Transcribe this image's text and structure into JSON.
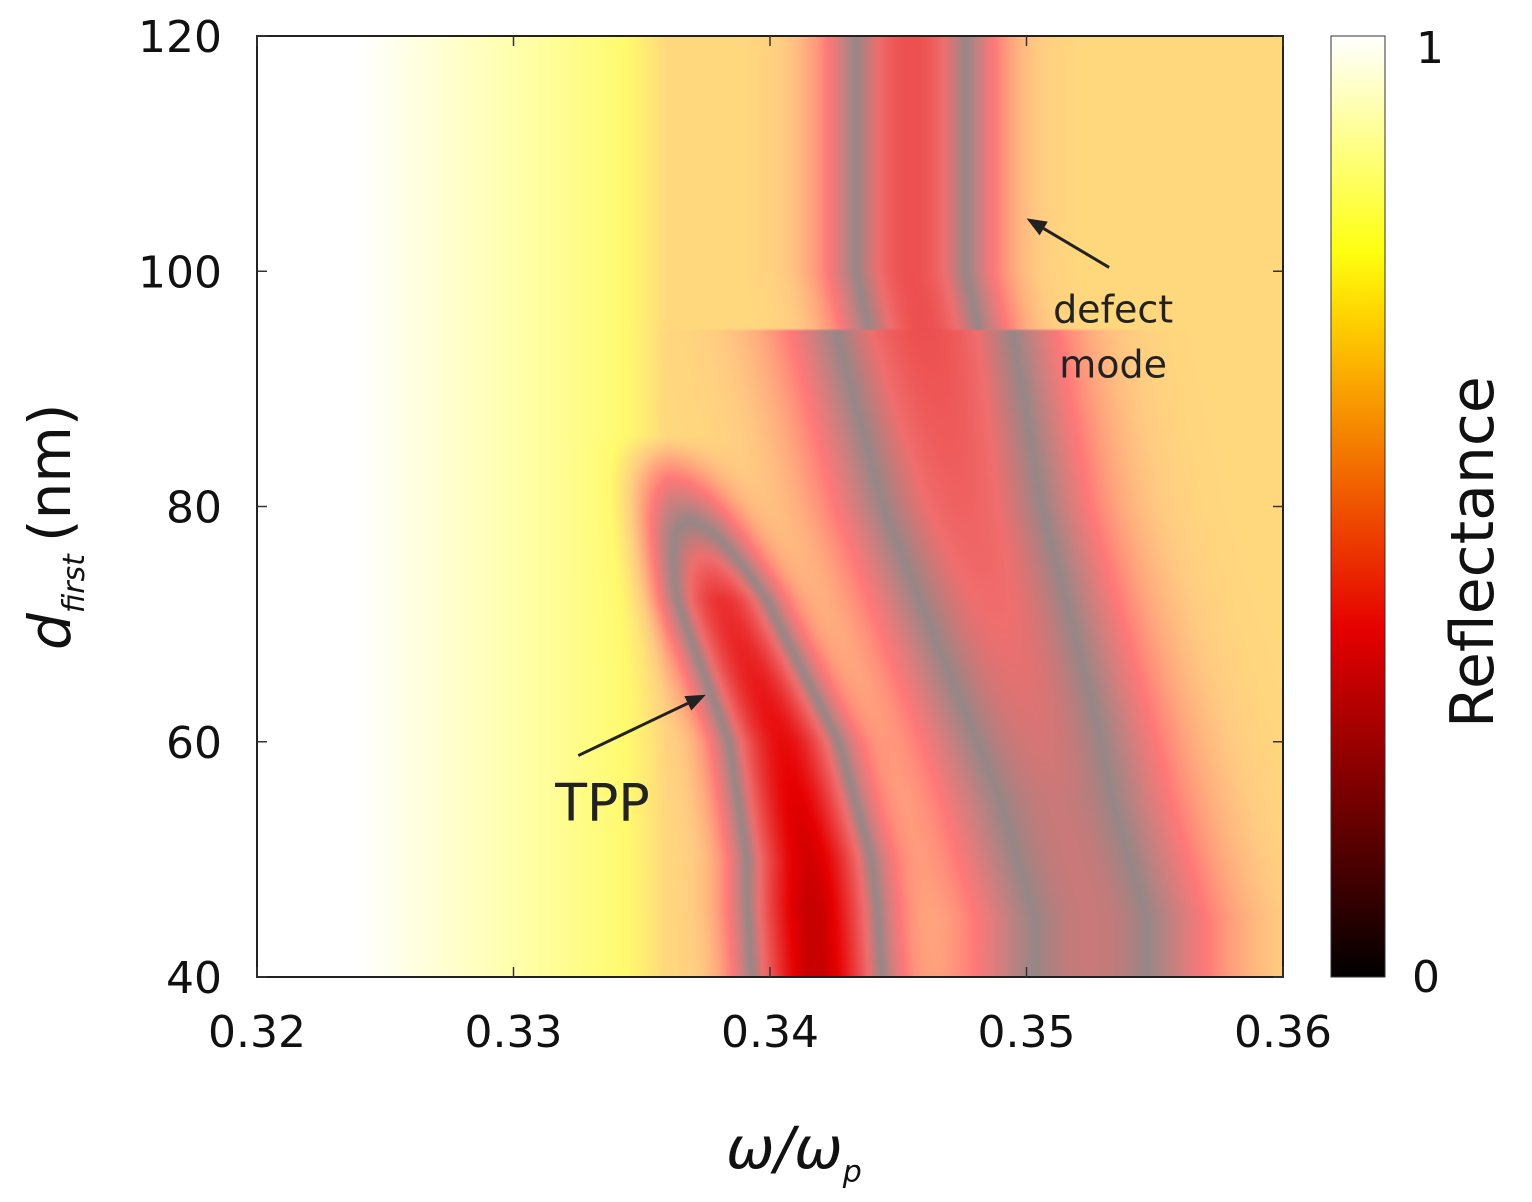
{
  "chart_data": {
    "type": "heatmap",
    "title": "",
    "xlabel_parts": {
      "main": "ω/ω",
      "sub": "p"
    },
    "ylabel_parts": {
      "main": "d",
      "sub": "first",
      "unit": "(nm)"
    },
    "x_range": [
      0.32,
      0.36
    ],
    "y_range": [
      40,
      120
    ],
    "x_ticks": [
      "0.32",
      "0.33",
      "0.34",
      "0.35",
      "0.36"
    ],
    "x_tick_values": [
      0.32,
      0.33,
      0.34,
      0.35,
      0.36
    ],
    "y_ticks": [
      "40",
      "60",
      "80",
      "100",
      "120"
    ],
    "y_tick_values": [
      40,
      60,
      80,
      100,
      120
    ],
    "colorbar": {
      "label": "Reflectance",
      "min": 0,
      "max": 1,
      "min_label": "0",
      "max_label": "1",
      "colormap": "hot"
    },
    "features": [
      {
        "name": "TPP",
        "description_points": [
          [
            0.3355,
            86
          ],
          [
            0.3385,
            70
          ],
          [
            0.3405,
            60
          ],
          [
            0.3415,
            50
          ],
          [
            0.3418,
            40
          ]
        ],
        "min_reflectance": 0.5
      },
      {
        "name": "defect mode",
        "description_points": [
          [
            0.3455,
            120
          ],
          [
            0.3455,
            100
          ],
          [
            0.3475,
            80
          ],
          [
            0.3505,
            60
          ],
          [
            0.3525,
            45
          ]
        ],
        "min_reflectance": 0.5
      }
    ],
    "annotations": [
      {
        "text": "TPP",
        "x": 0.3335,
        "y": 55,
        "arrow_to": [
          0.3375,
          64
        ]
      },
      {
        "text": "defect",
        "x": 0.354,
        "y": 96.5,
        "arrow_to": [
          0.35,
          104.5
        ]
      },
      {
        "text": "mode",
        "x": 0.354,
        "y": 91.8
      }
    ]
  }
}
